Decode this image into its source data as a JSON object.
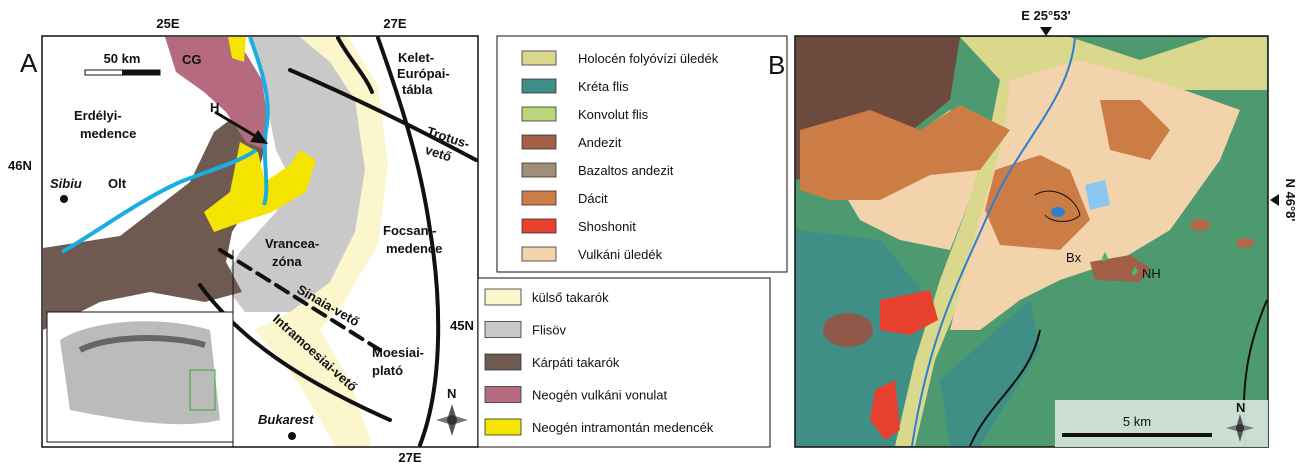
{
  "panel_a": {
    "label": "A",
    "coordinates": {
      "top_left": "25E",
      "top_right": "27E",
      "bottom": "27E",
      "left_upper": "46N",
      "right_lower": "45N"
    },
    "scale": "50 km",
    "places": {
      "cg": "CG",
      "h": "H",
      "erdely": [
        "Erdélyi-",
        "medence"
      ],
      "sibiu": "Sibiu",
      "olt": "Olt",
      "vrancea": [
        "Vrancea-",
        "zóna"
      ],
      "focsani": [
        "Focsani-",
        "medence"
      ],
      "kelet": [
        "Kelet-",
        "Európai-",
        "tábla"
      ],
      "trotus": [
        "Trotus-",
        "vető"
      ],
      "sinaia": "Sinaia-vető",
      "intramoesiai": "Intramoesiai-vető",
      "moesiai": [
        "Moesiai-",
        "plató"
      ],
      "bukarest": "Bukarest"
    },
    "north": "N",
    "legend": [
      {
        "label": "külső takarók",
        "color": "#fbf6cc"
      },
      {
        "label": "Flisöv",
        "color": "#c9c9c9"
      },
      {
        "label": "Kárpáti takarók",
        "color": "#6f5a52"
      },
      {
        "label": "Neogén vulkáni vonulat",
        "color": "#b66a7f"
      },
      {
        "label": "Neogén intramontán medencék",
        "color": "#f5e400"
      }
    ]
  },
  "panel_b": {
    "label": "B",
    "coordinates": {
      "top": "E 25°53'",
      "right": "N 46°8'"
    },
    "places": {
      "bx": "Bx",
      "nh": "NH"
    },
    "scale": "5 km",
    "north": "N",
    "legend": [
      {
        "label": "Holocén folyóvízi üledék",
        "color": "#d9d88c"
      },
      {
        "label": "Kréta flis",
        "color": "#3f8f87"
      },
      {
        "label": "Konvolut flis",
        "color": "#b9d77a"
      },
      {
        "label": "Andezit",
        "color": "#a35e48"
      },
      {
        "label": "Bazaltos andezit",
        "color": "#a08e78"
      },
      {
        "label": "Dácit",
        "color": "#cc7d45"
      },
      {
        "label": "Shoshonit",
        "color": "#e8402f"
      },
      {
        "label": "Vulkáni üledék",
        "color": "#f3d3ab"
      }
    ]
  }
}
